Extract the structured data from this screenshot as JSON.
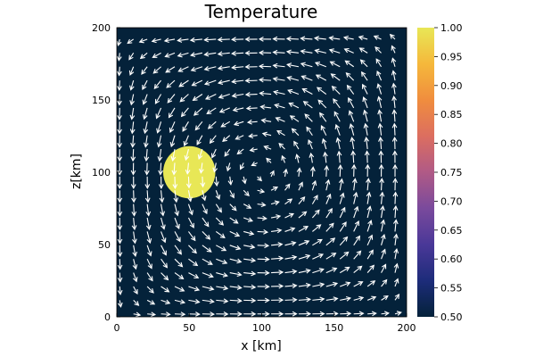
{
  "chart_data": {
    "type": "heatmap",
    "title": "Temperature",
    "xlabel": "x [km]",
    "ylabel": "z[km]",
    "xlim": [
      0,
      200
    ],
    "ylim": [
      0,
      200
    ],
    "x_ticks": [
      0,
      50,
      100,
      150,
      200
    ],
    "y_ticks": [
      0,
      50,
      100,
      150,
      200
    ],
    "background_value": 0.5,
    "anomaly": {
      "shape": "circle",
      "center_x": 50,
      "center_z": 100,
      "radius": 18,
      "value": 1.0
    },
    "velocity_field": {
      "pattern": "single clockwise convection cell",
      "center_x": 110,
      "center_z": 100,
      "arrow_color": "#ffffff"
    },
    "colorbar": {
      "min": 0.5,
      "max": 1.0,
      "ticks": [
        "0.50",
        "0.55",
        "0.60",
        "0.65",
        "0.70",
        "0.75",
        "0.80",
        "0.85",
        "0.90",
        "0.95",
        "1.00"
      ],
      "colors": [
        "#04223a",
        "#1d2c7a",
        "#4a3898",
        "#7a4a9c",
        "#b05a86",
        "#dc6e60",
        "#f08d3e",
        "#f5b83b",
        "#e8e756"
      ]
    },
    "grid": false
  }
}
